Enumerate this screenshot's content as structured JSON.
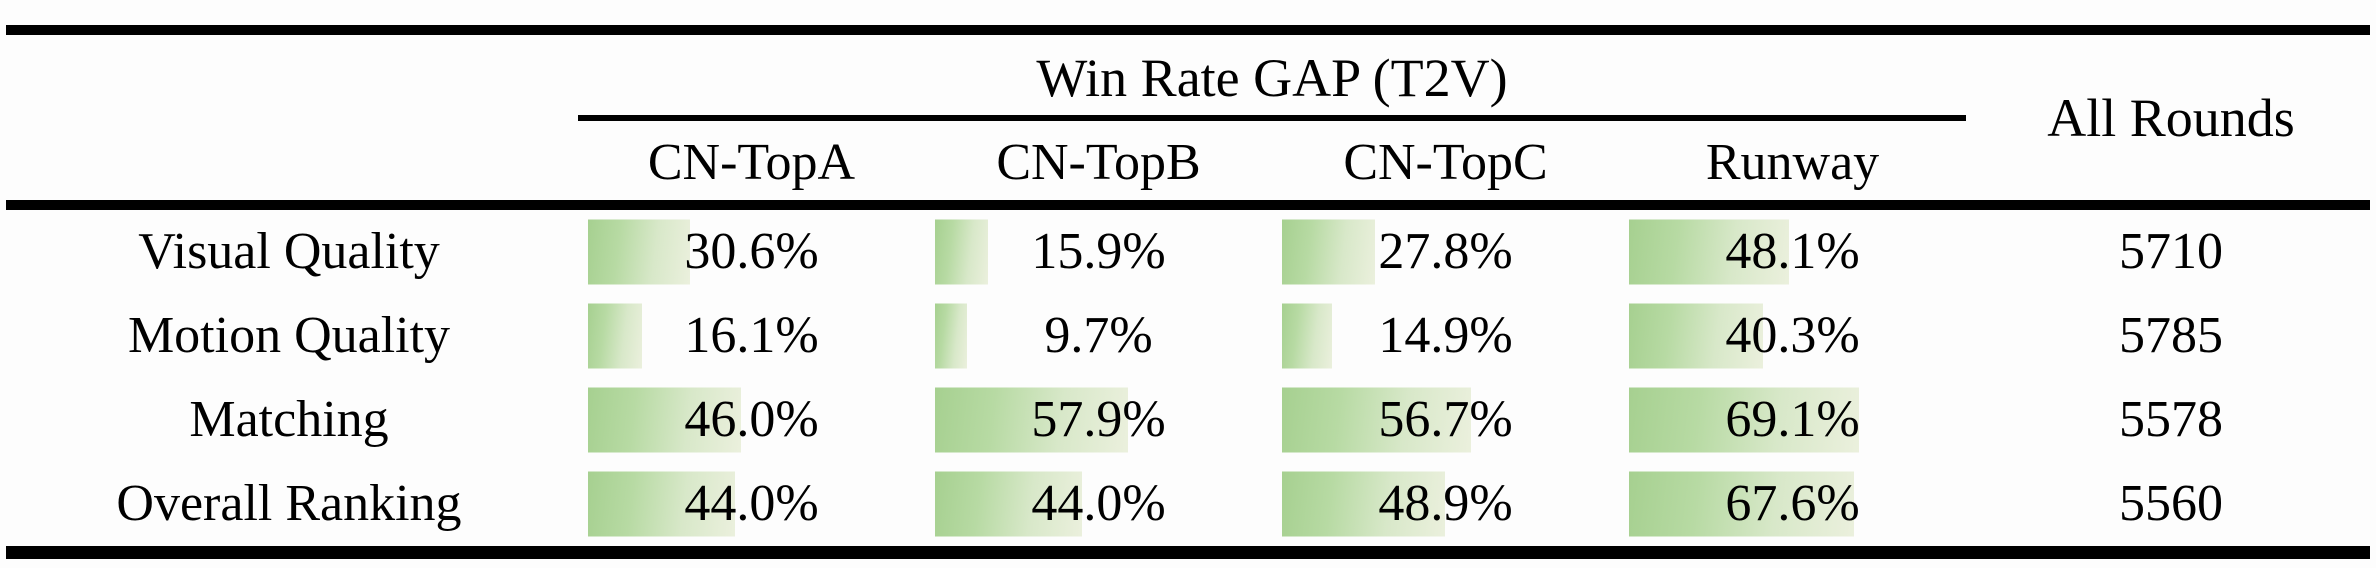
{
  "table": {
    "title": "Win Rate GAP (T2V)",
    "all_rounds_header": "All Rounds",
    "model_columns": [
      "CN-TopA",
      "CN-TopB",
      "CN-TopC",
      "Runway"
    ],
    "rows": [
      {
        "label": "Visual Quality",
        "win_rates": [
          "30.6%",
          "15.9%",
          "27.8%",
          "48.1%"
        ],
        "all_rounds": "5710"
      },
      {
        "label": "Motion Quality",
        "win_rates": [
          "16.1%",
          "9.7%",
          "14.9%",
          "40.3%"
        ],
        "all_rounds": "5785"
      },
      {
        "label": "Matching",
        "win_rates": [
          "46.0%",
          "57.9%",
          "56.7%",
          "69.1%"
        ],
        "all_rounds": "5578"
      },
      {
        "label": "Overall Ranking",
        "win_rates": [
          "44.0%",
          "44.0%",
          "48.9%",
          "67.6%"
        ],
        "all_rounds": "5560"
      }
    ]
  },
  "chart_data": {
    "type": "table",
    "title": "Win Rate GAP (T2V)",
    "columns": [
      "CN-TopA",
      "CN-TopB",
      "CN-TopC",
      "Runway",
      "All Rounds"
    ],
    "row_categories": [
      "Visual Quality",
      "Motion Quality",
      "Matching",
      "Overall Ranking"
    ],
    "series": [
      {
        "name": "CN-TopA",
        "values": [
          30.6,
          16.1,
          46.0,
          44.0
        ]
      },
      {
        "name": "CN-TopB",
        "values": [
          15.9,
          9.7,
          57.9,
          44.0
        ]
      },
      {
        "name": "CN-TopC",
        "values": [
          27.8,
          14.9,
          56.7,
          48.9
        ]
      },
      {
        "name": "Runway",
        "values": [
          48.1,
          40.3,
          69.1,
          67.6
        ]
      }
    ],
    "all_rounds": [
      5710,
      5785,
      5578,
      5560
    ],
    "unit": "%",
    "bar_scale": "in-cell data bars, width proportional to percentage (100% = full column width)"
  },
  "colors": {
    "bar_gradient_start": "#a6d090",
    "bar_gradient_end": "#ebf0dd",
    "rule": "#000000",
    "text": "#000000",
    "background": "#fdfdfd"
  }
}
